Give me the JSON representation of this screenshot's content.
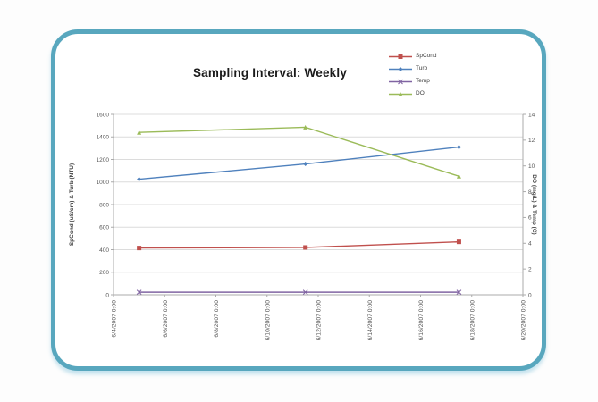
{
  "chart_data": {
    "type": "line",
    "title": "Sampling Interval: Weekly",
    "legend_position": "top-right",
    "grid": "horizontal",
    "x_axis": {
      "tick_labels": [
        "6/4/2007 0:00",
        "6/6/2007 0:00",
        "6/8/2007 0:00",
        "6/10/2007 0:00",
        "6/12/2007 0:00",
        "6/14/2007 0:00",
        "6/16/2007 0:00",
        "6/18/2007 0:00",
        "6/20/2007 0:00"
      ],
      "day_min": 0,
      "day_max": 16
    },
    "left_axis": {
      "label": "SpCond (uS/cm) & Turb (NTU)",
      "min": 0,
      "max": 1600,
      "ticks": [
        0,
        200,
        400,
        600,
        800,
        1000,
        1200,
        1400,
        1600
      ]
    },
    "right_axis": {
      "label": "DO (mg/L) & Temp (C)",
      "min": 0,
      "max": 14,
      "ticks": [
        0,
        2,
        4,
        6,
        8,
        10,
        12,
        14
      ]
    },
    "series": [
      {
        "name": "SpCond",
        "axis": "left",
        "color": "#c0504d",
        "marker": "square",
        "x_days": [
          1,
          7.5,
          13.5
        ],
        "values": [
          415,
          420,
          470
        ]
      },
      {
        "name": "Turb",
        "axis": "left",
        "color": "#4f81bd",
        "marker": "diamond",
        "x_days": [
          1,
          7.5,
          13.5
        ],
        "values": [
          1025,
          1160,
          1310
        ]
      },
      {
        "name": "Temp",
        "axis": "right",
        "color": "#8064a2",
        "marker": "x",
        "x_days": [
          1,
          7.5,
          13.5
        ],
        "values": [
          0.2,
          0.2,
          0.2
        ]
      },
      {
        "name": "DO",
        "axis": "right",
        "color": "#9bbb59",
        "marker": "triangle",
        "x_days": [
          1,
          7.5,
          13.5
        ],
        "values": [
          12.6,
          13.0,
          9.2
        ]
      }
    ],
    "styles": {
      "card_border": "#58a7be",
      "grid_color": "#dcdcdc",
      "axis_color": "#ababab",
      "text_color": "#555555",
      "title_color": "#1a1a1a"
    }
  }
}
